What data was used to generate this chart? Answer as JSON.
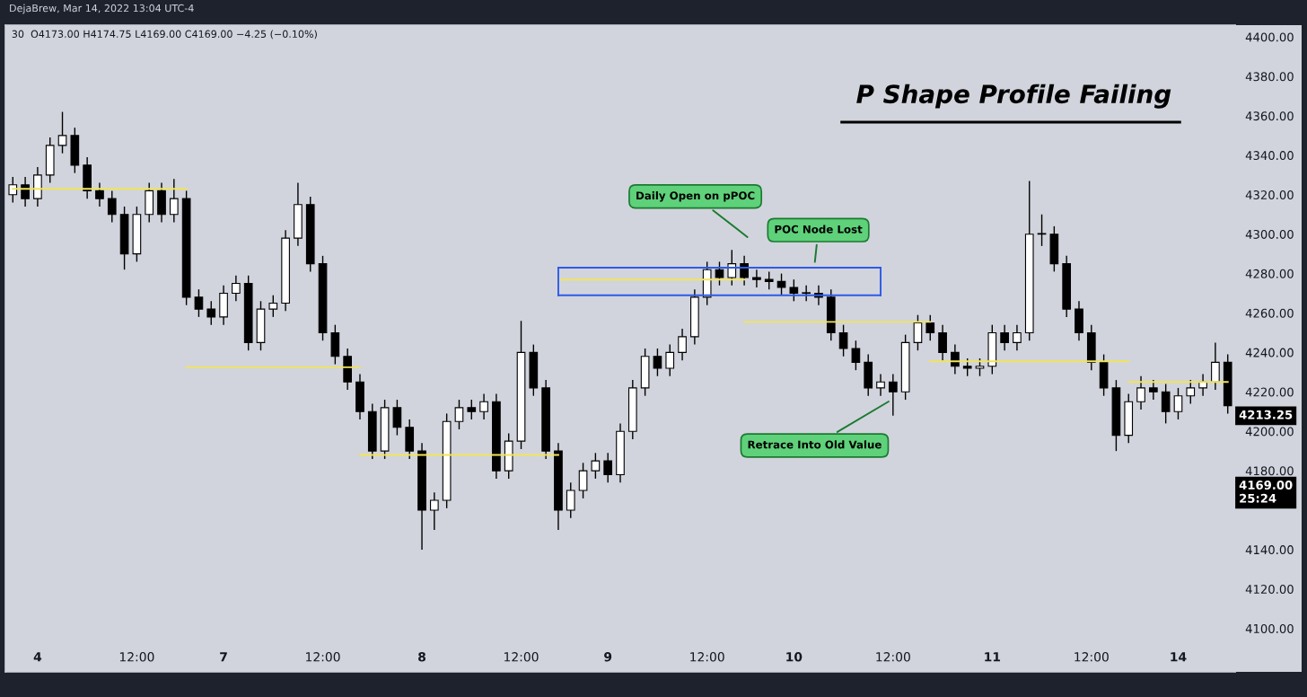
{
  "chart_data": {
    "type": "candlestick",
    "title": "P Shape Profile Failing",
    "annotations": [
      "DejaBrew, Mar 14, 2022 13:04 UTC-4",
      "30  O4173.00 H4174.75 L4169.00 C4169.00 −4.25 (−0.10%)",
      "Daily Open on pPOC",
      "POC Node Lost",
      "Retrace Into Old Value",
      "4213.25",
      "4169.00\n25:24"
    ],
    "color": "#000000",
    "categories": [
      null,
      null,
      "4",
      null,
      null,
      null,
      null,
      null,
      null,
      null,
      "12:00",
      null,
      null,
      null,
      null,
      null,
      null,
      "7",
      null,
      null,
      null,
      null,
      null,
      null,
      null,
      "12:00",
      null,
      null,
      null,
      null,
      null,
      null,
      null,
      "8",
      null,
      null,
      null,
      null,
      null,
      null,
      null,
      "12:00",
      null,
      null,
      null,
      null,
      null,
      null,
      "9",
      null,
      null,
      null,
      null,
      null,
      null,
      null,
      "12:00",
      null,
      null,
      null,
      null,
      null,
      null,
      "10",
      null,
      null,
      null,
      null,
      null,
      null,
      null,
      "12:00",
      null,
      null,
      null,
      null,
      null,
      null,
      null,
      "11",
      null,
      null,
      null,
      null,
      null,
      null,
      null,
      "12:00",
      null,
      null,
      null,
      null,
      null,
      null,
      "14",
      null,
      null,
      null,
      null
    ],
    "ohlc": [
      [
        4320,
        4329,
        4316,
        4325
      ],
      [
        4325,
        4329,
        4314,
        4318
      ],
      [
        4318,
        4334,
        4314,
        4330
      ],
      [
        4330,
        4349,
        4326,
        4345
      ],
      [
        4345,
        4362,
        4341,
        4350
      ],
      [
        4350,
        4354,
        4331,
        4335
      ],
      [
        4335,
        4339,
        4318,
        4322
      ],
      [
        4322,
        4326,
        4314,
        4318
      ],
      [
        4318,
        4322,
        4306,
        4310
      ],
      [
        4310,
        4314,
        4282,
        4290
      ],
      [
        4290,
        4314,
        4286,
        4310
      ],
      [
        4310,
        4326,
        4306,
        4322
      ],
      [
        4322,
        4326,
        4306,
        4310
      ],
      [
        4310,
        4328,
        4306,
        4318
      ],
      [
        4318,
        4322,
        4264,
        4268
      ],
      [
        4268,
        4272,
        4258,
        4262
      ],
      [
        4262,
        4266,
        4254,
        4258
      ],
      [
        4258,
        4274,
        4254,
        4270
      ],
      [
        4270,
        4279,
        4266,
        4275
      ],
      [
        4275,
        4279,
        4241,
        4245
      ],
      [
        4245,
        4266,
        4241,
        4262
      ],
      [
        4262,
        4269,
        4258,
        4265
      ],
      [
        4265,
        4302,
        4261,
        4298
      ],
      [
        4298,
        4326,
        4294,
        4315
      ],
      [
        4315,
        4319,
        4281,
        4285
      ],
      [
        4285,
        4289,
        4246,
        4250
      ],
      [
        4250,
        4254,
        4234,
        4238
      ],
      [
        4238,
        4242,
        4221,
        4225
      ],
      [
        4225,
        4229,
        4206,
        4210
      ],
      [
        4210,
        4214,
        4186,
        4190
      ],
      [
        4190,
        4216,
        4186,
        4212
      ],
      [
        4212,
        4216,
        4198,
        4202
      ],
      [
        4202,
        4206,
        4186,
        4190
      ],
      [
        4190,
        4194,
        4140,
        4160
      ],
      [
        4160,
        4169,
        4150,
        4165
      ],
      [
        4165,
        4209,
        4161,
        4205
      ],
      [
        4205,
        4216,
        4201,
        4212
      ],
      [
        4212,
        4216,
        4206,
        4210
      ],
      [
        4210,
        4219,
        4206,
        4215
      ],
      [
        4215,
        4219,
        4176,
        4180
      ],
      [
        4180,
        4199,
        4176,
        4195
      ],
      [
        4195,
        4256,
        4191,
        4240
      ],
      [
        4240,
        4244,
        4218,
        4222
      ],
      [
        4222,
        4226,
        4186,
        4190
      ],
      [
        4190,
        4194,
        4150,
        4160
      ],
      [
        4160,
        4174,
        4156,
        4170
      ],
      [
        4170,
        4184,
        4166,
        4180
      ],
      [
        4180,
        4189,
        4176,
        4185
      ],
      [
        4185,
        4189,
        4174,
        4178
      ],
      [
        4178,
        4204,
        4174,
        4200
      ],
      [
        4200,
        4226,
        4196,
        4222
      ],
      [
        4222,
        4242,
        4218,
        4238
      ],
      [
        4238,
        4242,
        4228,
        4232
      ],
      [
        4232,
        4244,
        4228,
        4240
      ],
      [
        4240,
        4252,
        4236,
        4248
      ],
      [
        4248,
        4272,
        4244,
        4268
      ],
      [
        4268,
        4286,
        4264,
        4282
      ],
      [
        4282,
        4286,
        4274,
        4278
      ],
      [
        4278,
        4292,
        4274,
        4285
      ],
      [
        4285,
        4289,
        4274,
        4278
      ],
      [
        4278,
        4282,
        4273,
        4277
      ],
      [
        4277,
        4281,
        4272,
        4276
      ],
      [
        4276,
        4280,
        4269,
        4273
      ],
      [
        4273,
        4277,
        4266,
        4270
      ],
      [
        4270,
        4274,
        4266,
        4270
      ],
      [
        4270,
        4274,
        4264,
        4268
      ],
      [
        4268,
        4272,
        4246,
        4250
      ],
      [
        4250,
        4254,
        4238,
        4242
      ],
      [
        4242,
        4246,
        4231,
        4235
      ],
      [
        4235,
        4239,
        4218,
        4222
      ],
      [
        4222,
        4229,
        4218,
        4225
      ],
      [
        4225,
        4229,
        4208,
        4220
      ],
      [
        4220,
        4249,
        4216,
        4245
      ],
      [
        4245,
        4259,
        4241,
        4255
      ],
      [
        4255,
        4259,
        4246,
        4250
      ],
      [
        4250,
        4254,
        4236,
        4240
      ],
      [
        4240,
        4244,
        4229,
        4233
      ],
      [
        4233,
        4237,
        4228,
        4232
      ],
      [
        4232,
        4237,
        4228,
        4233
      ],
      [
        4233,
        4254,
        4229,
        4250
      ],
      [
        4250,
        4254,
        4241,
        4245
      ],
      [
        4245,
        4254,
        4241,
        4250
      ],
      [
        4250,
        4327,
        4246,
        4300
      ],
      [
        4300,
        4310,
        4294,
        4300
      ],
      [
        4300,
        4304,
        4281,
        4285
      ],
      [
        4285,
        4289,
        4258,
        4262
      ],
      [
        4262,
        4266,
        4246,
        4250
      ],
      [
        4250,
        4254,
        4231,
        4235
      ],
      [
        4235,
        4239,
        4218,
        4222
      ],
      [
        4222,
        4226,
        4190,
        4198
      ],
      [
        4198,
        4219,
        4194,
        4215
      ],
      [
        4215,
        4228,
        4211,
        4222
      ],
      [
        4222,
        4226,
        4216,
        4220
      ],
      [
        4220,
        4224,
        4204,
        4210
      ],
      [
        4210,
        4222,
        4206,
        4218
      ],
      [
        4218,
        4226,
        4214,
        4222
      ],
      [
        4222,
        4229,
        4218,
        4225
      ],
      [
        4225,
        4245,
        4221,
        4235
      ],
      [
        4235,
        4239,
        4209,
        4213
      ]
    ],
    "series": [
      {
        "type": "line",
        "color": "#f2e35a",
        "values": [
          4323,
          4323,
          4323,
          4323,
          4323,
          4323,
          4323,
          4323,
          4323,
          4323,
          4323,
          4323,
          4323,
          4323,
          4323,
          null,
          null,
          null,
          null,
          null,
          null,
          null,
          null,
          null,
          null,
          null,
          null,
          null,
          null,
          null,
          null,
          null,
          null,
          null,
          null,
          null,
          null,
          null,
          null,
          null,
          null,
          null,
          null,
          null,
          null,
          null,
          null,
          null,
          null,
          null,
          null,
          null,
          null,
          null,
          null,
          null,
          null,
          null,
          null,
          null,
          null,
          null,
          null,
          null,
          null,
          null,
          null,
          null,
          null,
          null,
          null,
          null,
          null,
          null,
          null,
          null,
          null,
          null,
          null,
          null,
          null,
          null,
          null,
          null,
          null,
          null,
          null,
          null,
          null,
          null,
          null,
          null,
          null,
          null,
          null,
          null,
          null,
          null,
          null
        ]
      },
      {
        "type": "line",
        "color": "#f2e35a",
        "values": [
          null,
          null,
          null,
          null,
          null,
          null,
          null,
          null,
          null,
          null,
          null,
          null,
          null,
          null,
          4232.5,
          4232.5,
          4232.5,
          4232.5,
          4232.5,
          4232.5,
          4232.5,
          4232.5,
          4232.5,
          4232.5,
          4232.5,
          4232.5,
          4232.5,
          4232.5,
          4232.5,
          null,
          null,
          null,
          null,
          null,
          null,
          null,
          null,
          null,
          null,
          null,
          null,
          null,
          null,
          null,
          null,
          null,
          null,
          null,
          null,
          null,
          null,
          null,
          null,
          null,
          null,
          null,
          null,
          null,
          null,
          null,
          null,
          null,
          null,
          null,
          null,
          null,
          null,
          null,
          null,
          null,
          null,
          null,
          null,
          null,
          null,
          null,
          null,
          null,
          null,
          null,
          null,
          null,
          null,
          null,
          null,
          null,
          null,
          null,
          null,
          null,
          null,
          null,
          null,
          null,
          null,
          null,
          null,
          null,
          null
        ]
      },
      {
        "type": "line",
        "color": "#f2e35a",
        "values": [
          null,
          null,
          null,
          null,
          null,
          null,
          null,
          null,
          null,
          null,
          null,
          null,
          null,
          null,
          null,
          null,
          null,
          null,
          null,
          null,
          null,
          null,
          null,
          null,
          null,
          null,
          null,
          null,
          4188,
          4188,
          4188,
          4188,
          4188,
          4188,
          4188,
          4188,
          4188,
          4188,
          4188,
          4188,
          4188,
          4188,
          4188,
          4188,
          4188,
          null,
          null,
          null,
          null,
          null,
          null,
          null,
          null,
          null,
          null,
          null,
          null,
          null,
          null,
          null,
          null,
          null,
          null,
          null,
          null,
          null,
          null,
          null,
          null,
          null,
          null,
          null,
          null,
          null,
          null,
          null,
          null,
          null,
          null,
          null,
          null,
          null,
          null,
          null,
          null,
          null,
          null,
          null,
          null,
          null,
          null,
          null,
          null,
          null,
          null,
          null,
          null,
          null,
          null
        ]
      },
      {
        "type": "line",
        "color": "#f2e35a",
        "values": [
          null,
          null,
          null,
          null,
          null,
          null,
          null,
          null,
          null,
          null,
          null,
          null,
          null,
          null,
          null,
          null,
          null,
          null,
          null,
          null,
          null,
          null,
          null,
          null,
          null,
          null,
          null,
          null,
          null,
          null,
          null,
          null,
          null,
          null,
          null,
          null,
          null,
          null,
          null,
          null,
          null,
          null,
          null,
          null,
          4277,
          4277,
          4277,
          4277,
          4277,
          4277,
          4277,
          4277,
          4277,
          4277,
          4277,
          4277,
          4277,
          4277,
          4277,
          4277,
          null,
          null,
          null,
          null,
          null,
          null,
          null,
          null,
          null,
          null,
          null,
          null,
          null,
          null,
          null,
          null,
          null,
          null,
          null,
          null,
          null,
          null,
          null,
          null,
          null,
          null,
          null,
          null,
          null,
          null,
          null,
          null,
          null,
          null,
          null,
          null,
          null,
          null,
          null
        ]
      },
      {
        "type": "line",
        "color": "#f2e35a",
        "values": [
          null,
          null,
          null,
          null,
          null,
          null,
          null,
          null,
          null,
          null,
          null,
          null,
          null,
          null,
          null,
          null,
          null,
          null,
          null,
          null,
          null,
          null,
          null,
          null,
          null,
          null,
          null,
          null,
          null,
          null,
          null,
          null,
          null,
          null,
          null,
          null,
          null,
          null,
          null,
          null,
          null,
          null,
          null,
          null,
          null,
          null,
          null,
          null,
          null,
          null,
          null,
          null,
          null,
          null,
          null,
          null,
          null,
          null,
          null,
          4255.5,
          4255.5,
          4255.5,
          4255.5,
          4255.5,
          4255.5,
          4255.5,
          4255.5,
          4255.5,
          4255.5,
          4255.5,
          4255.5,
          4255.5,
          4255.5,
          4255.5,
          4255.5,
          null,
          null,
          null,
          null,
          null,
          null,
          null,
          null,
          null,
          null,
          null,
          null,
          null,
          null,
          null,
          null,
          null,
          null,
          null,
          null,
          null,
          null,
          null,
          null
        ]
      },
      {
        "type": "line",
        "color": "#f2e35a",
        "values": [
          null,
          null,
          null,
          null,
          null,
          null,
          null,
          null,
          null,
          null,
          null,
          null,
          null,
          null,
          null,
          null,
          null,
          null,
          null,
          null,
          null,
          null,
          null,
          null,
          null,
          null,
          null,
          null,
          null,
          null,
          null,
          null,
          null,
          null,
          null,
          null,
          null,
          null,
          null,
          null,
          null,
          null,
          null,
          null,
          null,
          null,
          null,
          null,
          null,
          null,
          null,
          null,
          null,
          null,
          null,
          null,
          null,
          null,
          null,
          null,
          null,
          null,
          null,
          null,
          null,
          null,
          null,
          null,
          null,
          null,
          null,
          null,
          null,
          null,
          4235.5,
          4235.5,
          4235.5,
          4235.5,
          4235.5,
          4235.5,
          4235.5,
          4235.5,
          4235.5,
          4235.5,
          4235.5,
          4235.5,
          4235.5,
          4235.5,
          4235.5,
          4235.5,
          4235.5,
          null,
          null,
          null,
          null,
          null,
          null,
          null,
          null
        ]
      },
      {
        "type": "line",
        "color": "#f2e35a",
        "values": [
          null,
          null,
          null,
          null,
          null,
          null,
          null,
          null,
          null,
          null,
          null,
          null,
          null,
          null,
          null,
          null,
          null,
          null,
          null,
          null,
          null,
          null,
          null,
          null,
          null,
          null,
          null,
          null,
          null,
          null,
          null,
          null,
          null,
          null,
          null,
          null,
          null,
          null,
          null,
          null,
          null,
          null,
          null,
          null,
          null,
          null,
          null,
          null,
          null,
          null,
          null,
          null,
          null,
          null,
          null,
          null,
          null,
          null,
          null,
          null,
          null,
          null,
          null,
          null,
          null,
          null,
          null,
          null,
          null,
          null,
          null,
          null,
          null,
          null,
          null,
          null,
          null,
          null,
          null,
          null,
          null,
          null,
          null,
          null,
          null,
          null,
          null,
          null,
          null,
          null,
          4225,
          4225,
          4225,
          4225,
          4225,
          4225,
          4225,
          4225,
          4225
        ]
      },
      {
        "type": "line",
        "color": "#2e5be6",
        "values": [
          null,
          null,
          null,
          null,
          null,
          null,
          null,
          null,
          null,
          null,
          null,
          null,
          null,
          null,
          null,
          null,
          null,
          null,
          null,
          null,
          null,
          null,
          null,
          null,
          null,
          null,
          null,
          null,
          null,
          null,
          null,
          null,
          null,
          null,
          null,
          null,
          null,
          null,
          null,
          null,
          null,
          null,
          null,
          null,
          4283,
          4283,
          4283,
          4283,
          4283,
          4283,
          4283,
          4283,
          4283,
          4283,
          4283,
          4283,
          4283,
          4283,
          4283,
          4283,
          4283,
          4283,
          4283,
          4283,
          4283,
          4283,
          4283,
          4283,
          4283,
          4283,
          4283,
          null,
          null,
          null,
          null,
          null,
          null,
          null,
          null,
          null,
          null,
          null,
          null,
          null,
          null,
          null,
          null,
          null,
          null,
          null,
          null,
          null,
          null,
          null,
          null,
          null,
          null,
          null,
          null
        ]
      },
      {
        "type": "line",
        "color": "#2e5be6",
        "values": [
          null,
          null,
          null,
          null,
          null,
          null,
          null,
          null,
          null,
          null,
          null,
          null,
          null,
          null,
          null,
          null,
          null,
          null,
          null,
          null,
          null,
          null,
          null,
          null,
          null,
          null,
          null,
          null,
          null,
          null,
          null,
          null,
          null,
          null,
          null,
          null,
          null,
          null,
          null,
          null,
          null,
          null,
          null,
          null,
          4269,
          4269,
          4269,
          4269,
          4269,
          4269,
          4269,
          4269,
          4269,
          4269,
          4269,
          4269,
          4269,
          4269,
          4269,
          4269,
          4269,
          4269,
          4269,
          4269,
          4269,
          4269,
          4269,
          4269,
          4269,
          4269,
          4269,
          null,
          null,
          null,
          null,
          null,
          null,
          null,
          null,
          null,
          null,
          null,
          null,
          null,
          null,
          null,
          null,
          null,
          null,
          null,
          null,
          null,
          null,
          null,
          null,
          null,
          null,
          null,
          null
        ]
      }
    ],
    "ylim": [
      4078,
      4406
    ],
    "yticks": [
      {
        "value": 4100,
        "label": "4100.00"
      },
      {
        "value": 4120,
        "label": "4120.00"
      },
      {
        "value": 4140,
        "label": "4140.00"
      },
      {
        "value": 4180,
        "label": "4180.00"
      },
      {
        "value": 4200,
        "label": "4200.00"
      },
      {
        "value": 4220,
        "label": "4220.00"
      },
      {
        "value": 4240,
        "label": "4240.00"
      },
      {
        "value": 4260,
        "label": "4260.00"
      },
      {
        "value": 4280,
        "label": "4280.00"
      },
      {
        "value": 4300,
        "label": "4300.00"
      },
      {
        "value": 4320,
        "label": "4320.00"
      },
      {
        "value": 4340,
        "label": "4340.00"
      },
      {
        "value": 4360,
        "label": "4360.00"
      },
      {
        "value": 4380,
        "label": "4380.00"
      },
      {
        "value": 4400,
        "label": "4400.00"
      }
    ],
    "grid": false,
    "legend": false
  }
}
